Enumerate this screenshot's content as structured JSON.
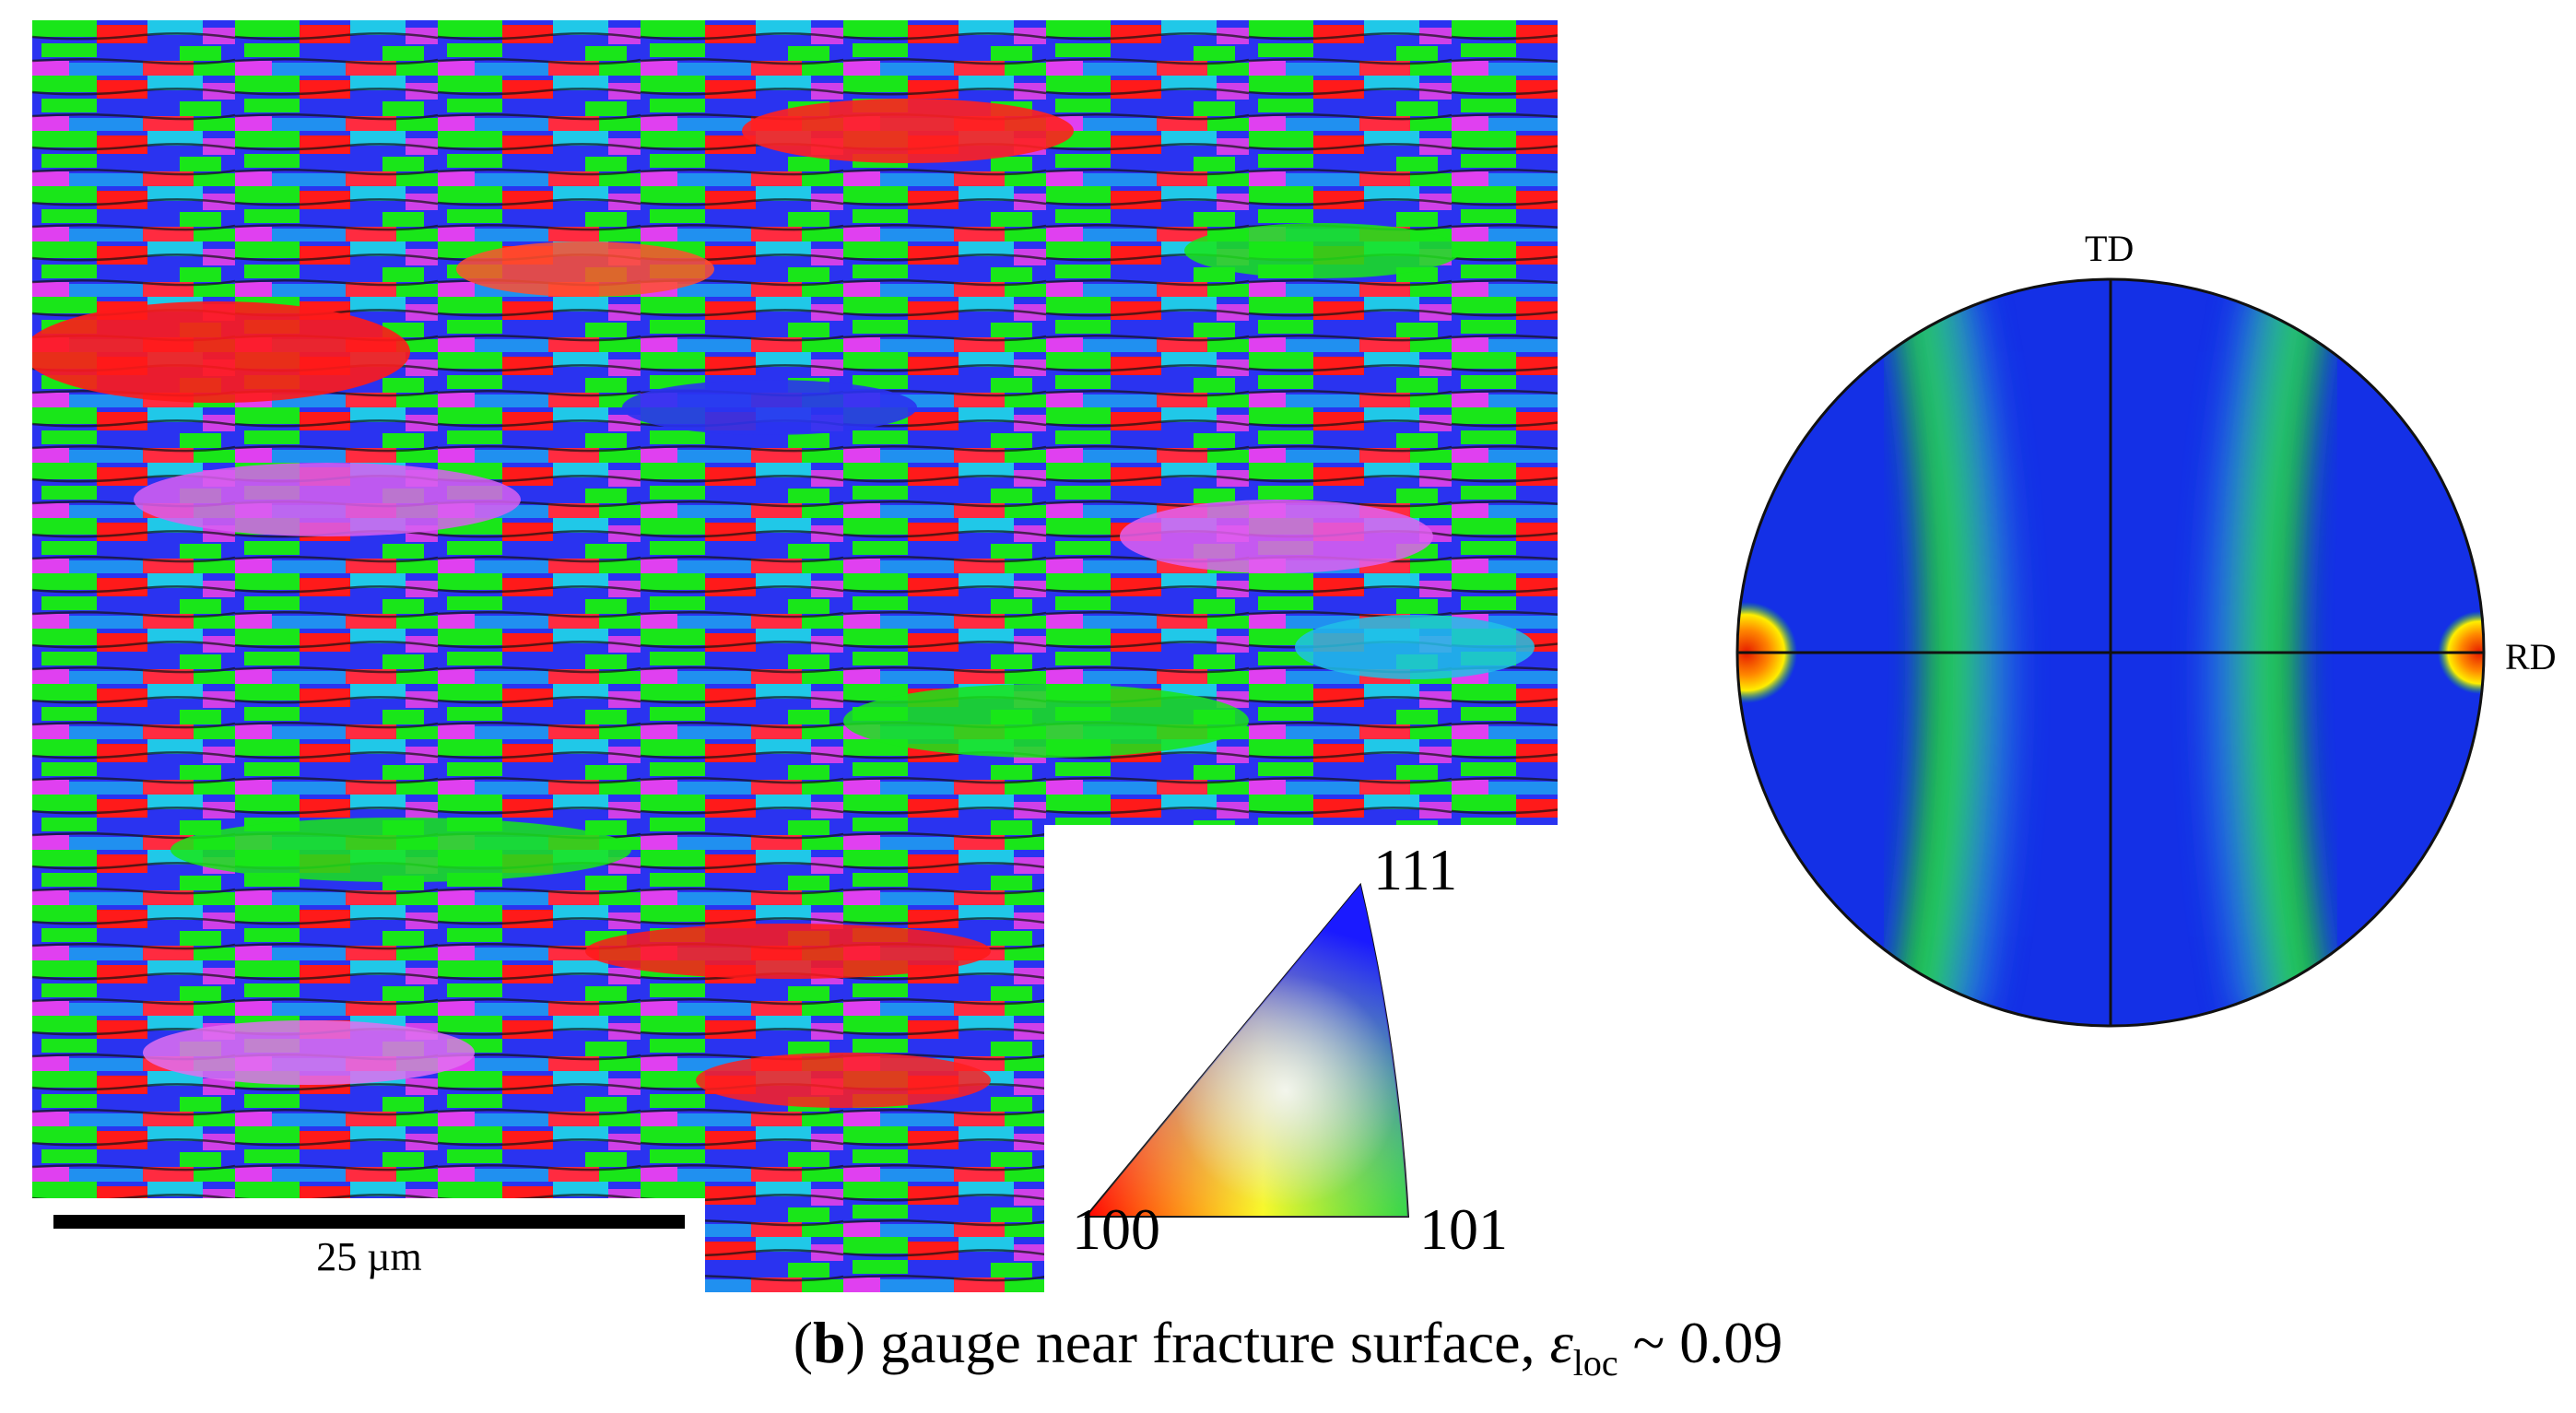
{
  "figure": {
    "panel_letter": "b",
    "caption_text": ") gauge near fracture surface, ",
    "strain_symbol": "ε",
    "strain_subscript": "loc",
    "strain_value": " ~ 0.09"
  },
  "ebsd_map": {
    "scale_bar_label": "25 µm",
    "ipf_labels": {
      "corner_111": "111",
      "corner_100": "100",
      "corner_101": "101"
    },
    "phase_colors": {
      "100": "#ff1a1a",
      "101": "#19e619",
      "111": "#2a33f0"
    }
  },
  "pole_figure": {
    "axis_top_label": "TD",
    "axis_right_label": "RD",
    "colors": {
      "background": "#1430e6",
      "medium": "#22d822",
      "high": "#e61a00"
    }
  }
}
